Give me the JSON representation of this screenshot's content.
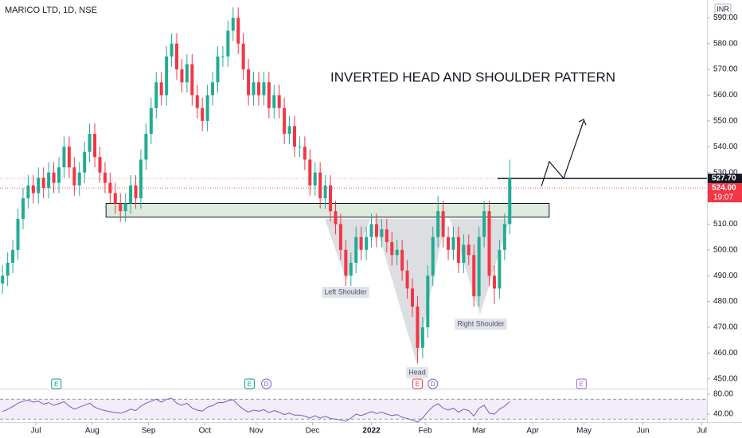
{
  "chart_data": {
    "type": "candlestick",
    "title": "MARICO LTD, 1D, NSE",
    "currency": "INR",
    "annotation": "INVERTED HEAD AND SHOULDER PATTERN",
    "pattern_labels": [
      "Left Shoulder",
      "Head",
      "Right Shoulder"
    ],
    "up_color": "#22ab94",
    "down_color": "#f23645",
    "open": [
      487,
      490,
      495,
      500,
      512,
      520,
      525,
      522,
      528,
      524,
      530,
      526,
      532,
      540,
      532,
      525,
      530,
      538,
      545,
      536,
      530,
      526,
      522,
      518,
      515,
      518,
      525,
      520,
      535,
      545,
      555,
      565,
      560,
      575,
      580,
      570,
      565,
      572,
      560,
      555,
      550,
      560,
      565,
      575,
      575,
      585,
      590,
      580,
      570,
      560,
      565,
      560,
      565,
      555,
      560,
      555,
      545,
      548,
      540,
      540,
      535,
      525,
      530,
      520,
      525,
      515,
      510,
      500,
      490,
      495,
      505,
      500,
      505,
      510,
      505,
      508,
      503,
      498,
      500,
      492,
      485,
      478,
      462,
      470,
      490,
      505,
      515,
      505,
      500,
      505,
      495,
      502,
      498,
      482,
      505,
      515,
      490,
      485,
      500,
      510
    ],
    "high": [
      494,
      499,
      504,
      516,
      524,
      529,
      529,
      532,
      532,
      534,
      534,
      536,
      544,
      544,
      536,
      534,
      542,
      549,
      549,
      540,
      534,
      530,
      526,
      522,
      522,
      529,
      529,
      539,
      549,
      559,
      569,
      569,
      579,
      584,
      584,
      574,
      576,
      576,
      564,
      559,
      564,
      569,
      579,
      579,
      589,
      594,
      594,
      584,
      574,
      569,
      569,
      569,
      569,
      564,
      564,
      559,
      552,
      552,
      544,
      544,
      539,
      534,
      534,
      529,
      529,
      519,
      514,
      504,
      499,
      509,
      509,
      509,
      514,
      514,
      512,
      512,
      507,
      504,
      504,
      496,
      489,
      482,
      474,
      494,
      509,
      521,
      519,
      509,
      509,
      509,
      506,
      506,
      502,
      509,
      519,
      519,
      494,
      504,
      514,
      535
    ],
    "low": [
      483,
      486,
      491,
      496,
      508,
      516,
      518,
      518,
      520,
      520,
      522,
      522,
      528,
      528,
      521,
      521,
      526,
      534,
      532,
      526,
      522,
      518,
      514,
      511,
      511,
      514,
      516,
      516,
      531,
      541,
      551,
      556,
      556,
      571,
      566,
      561,
      561,
      556,
      551,
      546,
      546,
      556,
      561,
      571,
      571,
      581,
      576,
      566,
      556,
      556,
      556,
      556,
      551,
      551,
      551,
      541,
      541,
      536,
      536,
      531,
      521,
      521,
      516,
      516,
      511,
      506,
      496,
      486,
      486,
      491,
      496,
      496,
      501,
      501,
      501,
      499,
      494,
      494,
      488,
      481,
      474,
      456,
      458,
      466,
      486,
      501,
      501,
      496,
      496,
      491,
      491,
      494,
      478,
      478,
      501,
      486,
      479,
      481,
      496,
      506
    ],
    "close": [
      490,
      495,
      500,
      512,
      520,
      525,
      522,
      528,
      524,
      530,
      526,
      532,
      540,
      532,
      525,
      530,
      538,
      545,
      536,
      530,
      526,
      522,
      518,
      515,
      518,
      525,
      520,
      535,
      545,
      555,
      565,
      560,
      575,
      580,
      570,
      565,
      572,
      560,
      555,
      550,
      560,
      565,
      575,
      575,
      585,
      590,
      580,
      570,
      560,
      565,
      560,
      565,
      555,
      560,
      555,
      545,
      548,
      540,
      540,
      535,
      525,
      530,
      520,
      525,
      515,
      510,
      500,
      490,
      495,
      505,
      500,
      505,
      510,
      505,
      508,
      503,
      498,
      500,
      492,
      485,
      478,
      462,
      470,
      490,
      505,
      515,
      505,
      500,
      505,
      495,
      502,
      498,
      482,
      505,
      515,
      490,
      485,
      500,
      510,
      527.7
    ],
    "xlim": [
      0,
      138
    ],
    "xticks": [
      {
        "value": 7,
        "label": "Jul"
      },
      {
        "value": 18,
        "label": "Aug"
      },
      {
        "value": 29,
        "label": "Sep"
      },
      {
        "value": 40,
        "label": "Oct"
      },
      {
        "value": 50,
        "label": "Nov"
      },
      {
        "value": 61,
        "label": "Dec"
      },
      {
        "value": 72.5,
        "label": "2022"
      },
      {
        "value": 83,
        "label": "Feb"
      },
      {
        "value": 93.5,
        "label": "Mar"
      },
      {
        "value": 104,
        "label": "Apr"
      },
      {
        "value": 114,
        "label": "May"
      },
      {
        "value": 125.5,
        "label": "Jun"
      },
      {
        "value": 137,
        "label": "Jul"
      }
    ],
    "ylim": [
      446.2,
      596.9
    ],
    "yticks": [
      {
        "value": 450,
        "label": "450.00"
      },
      {
        "value": 460,
        "label": "460.00"
      },
      {
        "value": 470,
        "label": "470.00"
      },
      {
        "value": 480,
        "label": "480.00"
      },
      {
        "value": 490,
        "label": "490.00"
      },
      {
        "value": 500,
        "label": "500.00"
      },
      {
        "value": 510,
        "label": "510.00"
      },
      {
        "value": 530,
        "label": "530.00"
      },
      {
        "value": 540,
        "label": "540.00"
      },
      {
        "value": 550,
        "label": "550.00"
      },
      {
        "value": 560,
        "label": "560.00"
      },
      {
        "value": 570,
        "label": "570.00"
      },
      {
        "value": 580,
        "label": "580.00"
      },
      {
        "value": 590,
        "label": "590.00"
      }
    ],
    "price_tags": [
      {
        "value": 527.7,
        "label": "527.70",
        "color": "#131722"
      },
      {
        "value": 524,
        "label": "524.00",
        "color": "#f23645"
      }
    ],
    "countdown": "19:07",
    "zone": {
      "low": 512.7,
      "high": 518,
      "from": 20.7,
      "to": 107.2
    },
    "events": [
      {
        "x": 11,
        "label": "E",
        "color": "#089981"
      },
      {
        "x": 48.7,
        "label": "E",
        "color": "#089981"
      },
      {
        "x": 52,
        "label": "D",
        "color": "#7e57c2"
      },
      {
        "x": 81.5,
        "label": "E",
        "color": "#f23645"
      },
      {
        "x": 84.5,
        "label": "D",
        "color": "#7e57c2"
      },
      {
        "x": 113.5,
        "label": "E",
        "color": "#9c6ade"
      }
    ],
    "rsi": {
      "color": "#7e57c2",
      "ylim": [
        24,
        88
      ],
      "band": [
        30,
        70
      ],
      "yticks": [
        {
          "value": 80,
          "label": "80.00"
        },
        {
          "value": 40,
          "label": "40.00"
        }
      ],
      "values": [
        45,
        50,
        55,
        62,
        66,
        68,
        64,
        66,
        60,
        63,
        58,
        61,
        65,
        56,
        50,
        54,
        58,
        62,
        54,
        50,
        47,
        45,
        43,
        42,
        45,
        50,
        47,
        56,
        62,
        66,
        70,
        64,
        70,
        72,
        62,
        58,
        62,
        52,
        48,
        46,
        54,
        57,
        63,
        63,
        67,
        69,
        58,
        50,
        44,
        48,
        46,
        49,
        43,
        47,
        44,
        39,
        42,
        38,
        38,
        36,
        32,
        37,
        32,
        36,
        31,
        30,
        28,
        26,
        32,
        40,
        37,
        41,
        45,
        41,
        44,
        40,
        37,
        39,
        34,
        31,
        28,
        24,
        32,
        45,
        55,
        61,
        52,
        48,
        52,
        44,
        50,
        47,
        36,
        52,
        58,
        42,
        40,
        50,
        56,
        65
      ]
    }
  }
}
